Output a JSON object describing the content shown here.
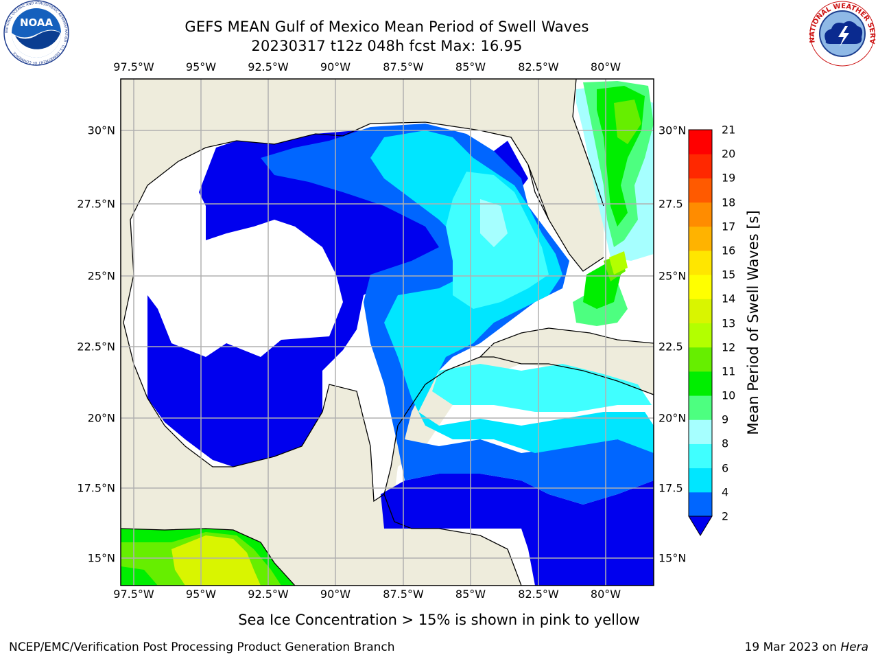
{
  "header": {
    "title_line1": "GEFS MEAN Gulf of Mexico Mean Period of Swell Waves",
    "title_line2": "20230317 t12z 048h fcst   Max: 16.95"
  },
  "logos": {
    "left": {
      "icon": "noaa-logo",
      "text": "NOAA",
      "ring_text": "NATIONAL OCEANIC AND ATMOSPHERIC ADMINISTRATION · U.S. DEPARTMENT OF COMMERCE"
    },
    "right": {
      "icon": "nws-logo",
      "ring_text": "NATIONAL WEATHER SERVICE"
    }
  },
  "map": {
    "region": "Gulf of Mexico",
    "lon_ticks": [
      "97.5°W",
      "95°W",
      "92.5°W",
      "90°W",
      "87.5°W",
      "85°W",
      "82.5°W",
      "80°W"
    ],
    "lon_values": [
      -97.5,
      -95,
      -92.5,
      -90,
      -87.5,
      -85,
      -82.5,
      -80
    ],
    "lat_ticks_left": [
      "30°N",
      "27.5°N",
      "25°N",
      "22.5°N",
      "20°N",
      "17.5°N",
      "15°N"
    ],
    "lat_ticks_right": [
      "30°N",
      "27.5",
      "25°N",
      "22.5",
      "20°N",
      "17.5",
      "15°N"
    ],
    "lat_values": [
      30,
      27.5,
      25,
      22.5,
      20,
      17.5,
      15
    ],
    "extent": {
      "lon": [
        -98,
        -78.2
      ],
      "lat": [
        14,
        31.8
      ]
    },
    "colors": {
      "land": "#eeecdc",
      "no_data": "#ffffff",
      "grid": "#b0b0b0",
      "coast": "#000000"
    }
  },
  "colorbar": {
    "label": "Mean Period of Swell Waves [s]",
    "ticks": [
      "2",
      "4",
      "6",
      "8",
      "9",
      "10",
      "11",
      "12",
      "13",
      "14",
      "15",
      "16",
      "17",
      "18",
      "19",
      "20",
      "21"
    ],
    "colors": [
      "#0066ff",
      "#00e6ff",
      "#40ffff",
      "#a6ffff",
      "#4dff80",
      "#00ee00",
      "#66ee00",
      "#b3ff00",
      "#d9f500",
      "#ffff00",
      "#ffe600",
      "#ffb300",
      "#ff8c00",
      "#ff5a00",
      "#ff2800",
      "#ff0000"
    ],
    "extend_color": "#0000ee"
  },
  "footer": {
    "note": "Sea Ice Concentration > 15% is shown in pink to yellow",
    "credit_left": "NCEP/EMC/Verification Post Processing Product Generation Branch",
    "credit_right_prefix": "19 Mar 2023 on ",
    "credit_right_host": "Hera"
  }
}
